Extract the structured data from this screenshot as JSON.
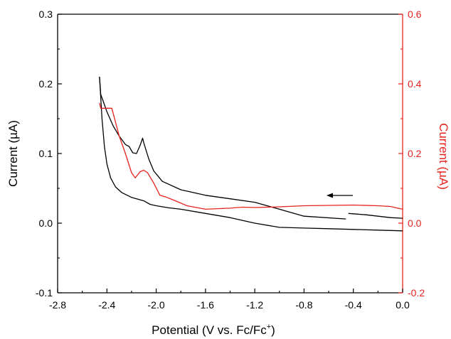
{
  "chart_data": {
    "type": "line",
    "title": "",
    "xlabel": "Potential (V vs. Fc/Fc",
    "xlabel_sup": "+",
    "xlabel_suffix": ")",
    "ylabel_left": "Current (µA)",
    "ylabel_right": "Current (µA)",
    "xlim": [
      -2.8,
      0.0
    ],
    "ylim_left": [
      -0.1,
      0.3
    ],
    "ylim_right": [
      -0.2,
      0.6
    ],
    "x_ticks": [
      "-2.8",
      "-2.4",
      "-2.0",
      "-1.6",
      "-1.2",
      "-0.8",
      "-0.4",
      "0.0"
    ],
    "y_ticks_left": [
      "-0.1",
      "0.0",
      "0.1",
      "0.2",
      "0.3"
    ],
    "y_ticks_right": [
      "-0.2",
      "0.0",
      "0.2",
      "0.4",
      "0.6"
    ],
    "grid": false,
    "legend": "none",
    "arrow_annotation": "scan direction, pointing toward negative potential",
    "colors": {
      "left_axis": "#000000",
      "right_axis": "#e8231d",
      "series_black": "#000000",
      "series_red": "#e8231d"
    },
    "series": [
      {
        "axis": "left",
        "color": "#000000",
        "x": [
          -0.46,
          -0.8,
          -1.0,
          -1.2,
          -1.4,
          -1.6,
          -1.8,
          -1.95,
          -2.02,
          -2.06,
          -2.1,
          -2.11,
          -2.13,
          -2.16,
          -2.19,
          -2.22,
          -2.25,
          -2.3,
          -2.35,
          -2.4,
          -2.43,
          -2.45,
          -2.46
        ],
        "y": [
          0.006,
          0.01,
          0.02,
          0.03,
          0.035,
          0.04,
          0.048,
          0.06,
          0.075,
          0.092,
          0.115,
          0.122,
          0.112,
          0.1,
          0.101,
          0.11,
          0.113,
          0.125,
          0.14,
          0.16,
          0.175,
          0.185,
          0.21
        ]
      },
      {
        "axis": "left",
        "color": "#000000",
        "x": [
          -2.46,
          -2.44,
          -2.42,
          -2.4,
          -2.37,
          -2.33,
          -2.28,
          -2.2,
          -2.1,
          -2.05,
          -2.0,
          -1.9,
          -1.8,
          -1.6,
          -1.4,
          -1.2,
          -1.0,
          -0.8,
          -0.6,
          -0.4,
          -0.2,
          0.0
        ],
        "y": [
          0.21,
          0.15,
          0.11,
          0.085,
          0.065,
          0.052,
          0.044,
          0.037,
          0.032,
          0.027,
          0.025,
          0.022,
          0.02,
          0.014,
          0.008,
          0.0,
          -0.006,
          -0.007,
          -0.008,
          -0.009,
          -0.01,
          -0.011
        ]
      },
      {
        "axis": "left",
        "color": "#000000",
        "x": [
          -0.44,
          -0.3,
          -0.2,
          -0.1,
          0.0
        ],
        "y": [
          0.014,
          0.012,
          0.01,
          0.008,
          0.007
        ]
      },
      {
        "axis": "right",
        "color": "#e8231d",
        "x": [
          0.0,
          -0.1,
          -0.2,
          -0.4,
          -0.6,
          -0.8,
          -1.0,
          -1.2,
          -1.3,
          -1.4,
          -1.6,
          -1.75,
          -1.85,
          -1.92,
          -1.97,
          -2.02,
          -2.07,
          -2.1,
          -2.13,
          -2.17,
          -2.2,
          -2.25,
          -2.3,
          -2.33,
          -2.36,
          -2.4,
          -2.43,
          -2.45,
          -2.46
        ],
        "y": [
          0.04,
          0.048,
          0.05,
          0.052,
          0.051,
          0.05,
          0.047,
          0.045,
          0.046,
          0.043,
          0.04,
          0.05,
          0.065,
          0.075,
          0.08,
          0.115,
          0.145,
          0.152,
          0.148,
          0.13,
          0.145,
          0.2,
          0.25,
          0.29,
          0.33,
          0.33,
          0.33,
          0.33,
          0.345
        ]
      }
    ]
  }
}
